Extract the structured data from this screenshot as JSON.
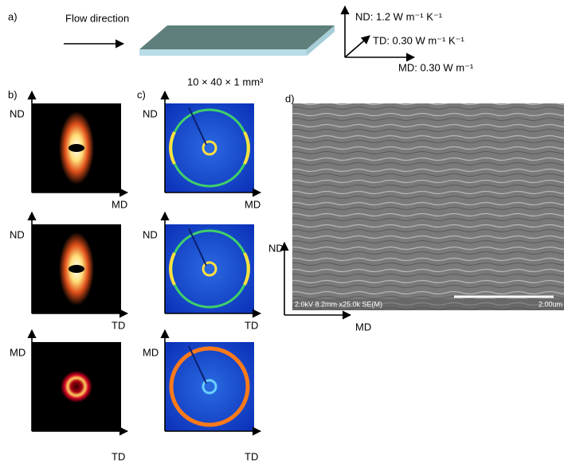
{
  "panel_a": {
    "label": "a)",
    "flow": "Flow direction",
    "nd": "ND: 1.2 W m⁻¹ K⁻¹",
    "td": "TD: 0.30 W m⁻¹ K⁻¹",
    "md": "MD:  0.30  W  m⁻¹",
    "size": "10 × 40 × 1 mm³"
  },
  "panel_b": {
    "label": "b)",
    "rows": [
      {
        "y_axis": "ND",
        "x_axis": "MD"
      },
      {
        "y_axis": "ND",
        "x_axis": "TD"
      },
      {
        "y_axis": "MD",
        "x_axis": "TD"
      }
    ]
  },
  "panel_c": {
    "label": "c)",
    "rows": [
      {
        "y_axis": "ND",
        "x_axis": "MD"
      },
      {
        "y_axis": "ND",
        "x_axis": "TD"
      },
      {
        "y_axis": "MD",
        "x_axis": "TD"
      }
    ]
  },
  "panel_d": {
    "label": "d)",
    "y_axis": "ND",
    "x_axis": "MD",
    "sem_info": "2.0kV 8.2mm x25.0k SE(M)",
    "scale_bar": "2.00um"
  }
}
